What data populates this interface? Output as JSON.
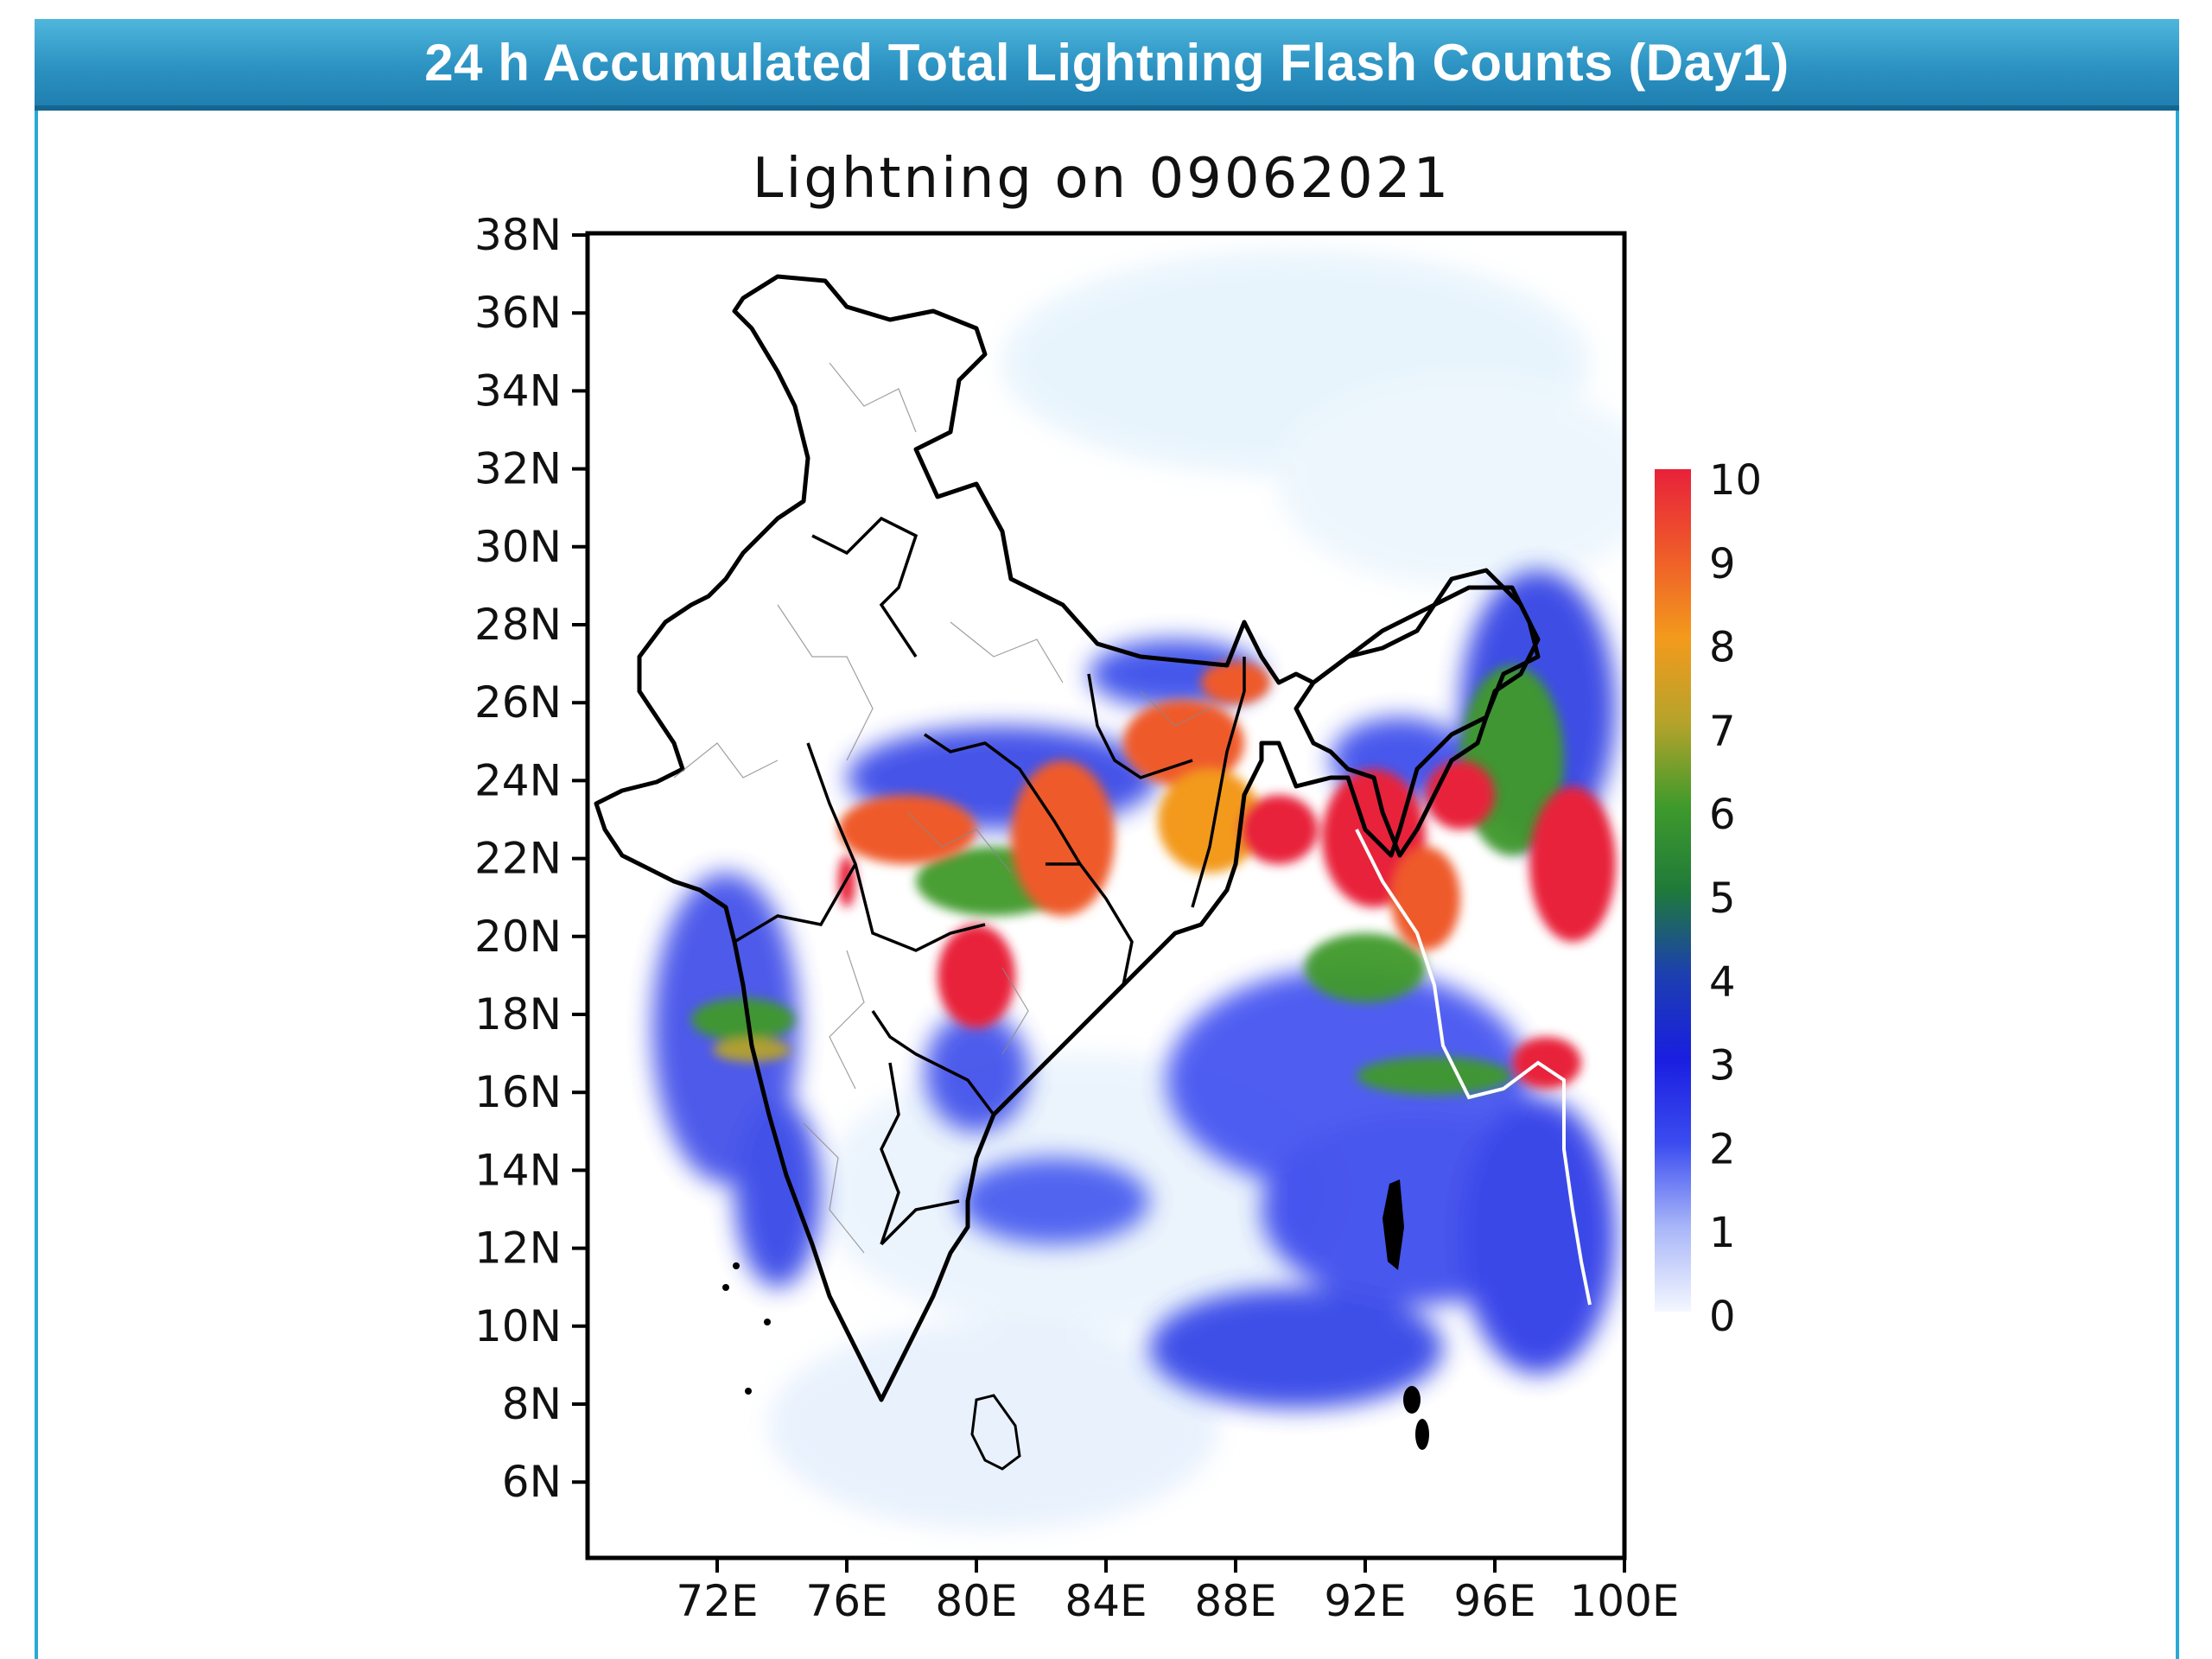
{
  "header": {
    "title": "24 h Accumulated Total Lightning Flash Counts (Day1)"
  },
  "map": {
    "title": "Lightning on 09062021",
    "lat_labels": [
      "38N",
      "36N",
      "34N",
      "32N",
      "30N",
      "28N",
      "26N",
      "24N",
      "22N",
      "20N",
      "18N",
      "16N",
      "14N",
      "12N",
      "10N",
      "8N",
      "6N"
    ],
    "lon_labels": [
      "72E",
      "76E",
      "80E",
      "84E",
      "88E",
      "92E",
      "96E",
      "100E"
    ]
  },
  "legend": {
    "labels": [
      "10",
      "9",
      "8",
      "7",
      "6",
      "5",
      "4",
      "3",
      "2",
      "1",
      "0"
    ],
    "colors": [
      "#e8213a",
      "#ef5a2a",
      "#f39a1c",
      "#b6a32b",
      "#3f9a2c",
      "#1f7a3a",
      "#1c3fb0",
      "#1a1ee0",
      "#3b4cf0",
      "#a9b6f8",
      "#f4f7ff"
    ]
  },
  "colors": {
    "banner": "#2c93c3",
    "frame": "#29a9d6"
  }
}
